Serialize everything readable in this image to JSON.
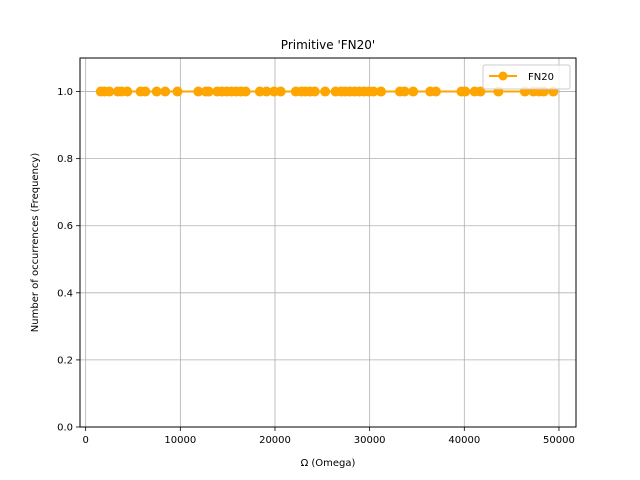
{
  "chart_data": {
    "type": "line",
    "title": "Primitive 'FN20'",
    "xlabel": "Ω (Omega)",
    "ylabel": "Number of occurrences (Frequency)",
    "xlim": [
      -600,
      51800
    ],
    "ylim": [
      0,
      1.1
    ],
    "xticks": [
      0,
      10000,
      20000,
      30000,
      40000,
      50000
    ],
    "yticks": [
      0.0,
      0.2,
      0.4,
      0.6,
      0.8,
      1.0
    ],
    "xtick_labels": [
      "0",
      "10000",
      "20000",
      "30000",
      "40000",
      "50000"
    ],
    "ytick_labels": [
      "0.0",
      "0.2",
      "0.4",
      "0.6",
      "0.8",
      "1.0"
    ],
    "grid": true,
    "legend_position": "top-right",
    "series": [
      {
        "name": "FN20",
        "color": "#ffa500",
        "marker": "circle",
        "x": [
          1600,
          2000,
          2500,
          3400,
          3800,
          4400,
          5800,
          6300,
          7500,
          8400,
          9700,
          11900,
          12700,
          13000,
          13900,
          14400,
          14900,
          15400,
          15900,
          16400,
          16900,
          18400,
          19100,
          19900,
          20600,
          22200,
          22800,
          23200,
          23700,
          24200,
          25300,
          26400,
          27000,
          27400,
          27900,
          28400,
          28900,
          29400,
          29900,
          30400,
          31200,
          33200,
          33700,
          34600,
          36400,
          37000,
          39700,
          40100,
          41100,
          41700,
          43600,
          46400,
          47300,
          47900,
          48400,
          49400
        ],
        "y": [
          1,
          1,
          1,
          1,
          1,
          1,
          1,
          1,
          1,
          1,
          1,
          1,
          1,
          1,
          1,
          1,
          1,
          1,
          1,
          1,
          1,
          1,
          1,
          1,
          1,
          1,
          1,
          1,
          1,
          1,
          1,
          1,
          1,
          1,
          1,
          1,
          1,
          1,
          1,
          1,
          1,
          1,
          1,
          1,
          1,
          1,
          1,
          1,
          1,
          1,
          1,
          1,
          1,
          1,
          1,
          1
        ]
      }
    ]
  }
}
